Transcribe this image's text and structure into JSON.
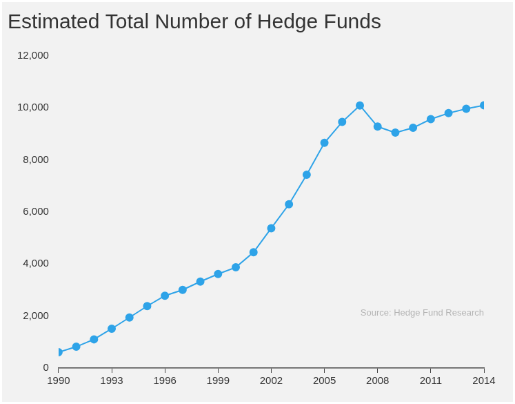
{
  "chart_data": {
    "type": "line",
    "title": "Estimated Total Number of Hedge Funds",
    "annotations": [
      "Source: Hedge Fund Research"
    ],
    "x": [
      1990,
      1991,
      1992,
      1993,
      1994,
      1995,
      1996,
      1997,
      1998,
      1999,
      2000,
      2001,
      2002,
      2003,
      2004,
      2005,
      2006,
      2007,
      2008,
      2009,
      2010,
      2011,
      2012,
      2013,
      2014
    ],
    "values": [
      610,
      821,
      1105,
      1514,
      1945,
      2383,
      2781,
      3008,
      3325,
      3617,
      3873,
      4454,
      5379,
      6297,
      7436,
      8661,
      9462,
      10096,
      9284,
      9050,
      9237,
      9570,
      9800,
      9970,
      10100
    ],
    "color": "#2ea3e8",
    "marker": "circle",
    "xlim": [
      1990,
      2014
    ],
    "xticks": [
      1990,
      1993,
      1996,
      1999,
      2002,
      2005,
      2008,
      2011,
      2014
    ],
    "ylim": [
      0,
      12000
    ],
    "yticks": [
      0,
      {
        "value": 2000,
        "label": "2,000"
      },
      {
        "value": 4000,
        "label": "4,000"
      },
      {
        "value": 6000,
        "label": "6,000"
      },
      {
        "value": 8000,
        "label": "8,000"
      },
      {
        "value": 10000,
        "label": "10,000"
      },
      {
        "value": 12000,
        "label": "12,000"
      }
    ],
    "grid": false
  }
}
